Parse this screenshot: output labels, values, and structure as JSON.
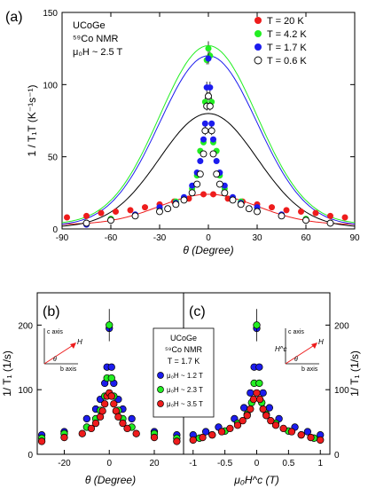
{
  "colors": {
    "red": "#ee1c1c",
    "green": "#22ee22",
    "blue": "#1c1cee",
    "black": "#000000",
    "open": "#ffffff"
  },
  "chart_data": [
    {
      "panel": "(a)",
      "type": "scatter",
      "sample": "UCoGe",
      "nucleus_label": "⁵⁹Co NMR",
      "field_label": "μ₀H ~ 2.5 T",
      "xlabel": "θ (Degree)",
      "ylabel": "1 / T₁T (K⁻¹s⁻¹)",
      "xlim": [
        -90,
        90
      ],
      "ylim": [
        0,
        150
      ],
      "xticks": [
        -90,
        -60,
        -30,
        0,
        30,
        60,
        90
      ],
      "yticks": [
        0,
        50,
        100,
        150
      ],
      "legend_position": "top-right",
      "legend": [
        "T = 20 K",
        "T = 4.2 K",
        "T = 1.7 K",
        "T = 0.6 K"
      ],
      "series": [
        {
          "name": "T = 20 K",
          "color": "red",
          "marker": "filled",
          "x": [
            -87,
            -75,
            -66,
            -57,
            -48,
            -39,
            -30,
            -21,
            -12,
            -3,
            3,
            12,
            21,
            30,
            39,
            48,
            57,
            66,
            75,
            84
          ],
          "y": [
            8,
            9,
            11,
            12,
            13,
            15,
            17,
            19,
            21,
            24,
            24,
            21,
            19,
            17,
            15,
            13,
            12,
            11,
            9,
            8
          ]
        },
        {
          "name": "T = 4.2 K",
          "color": "green",
          "marker": "filled",
          "x": [
            -60,
            -45,
            -30,
            -20,
            -15,
            -10,
            -7,
            -5,
            -3,
            -2,
            -1,
            0,
            1,
            2,
            3,
            5,
            7,
            10,
            15,
            20,
            30,
            45,
            60
          ],
          "y": [
            7,
            9,
            14,
            19,
            20,
            28,
            37,
            54,
            60,
            88,
            117,
            125,
            120,
            88,
            60,
            54,
            37,
            28,
            20,
            19,
            14,
            9,
            7
          ],
          "yerr": [
            0,
            0,
            0,
            0,
            0,
            0,
            0,
            0,
            0,
            3,
            3,
            5,
            3,
            3,
            0,
            0,
            0,
            0,
            0,
            0,
            0,
            0,
            0
          ]
        },
        {
          "name": "T = 1.7 K",
          "color": "blue",
          "marker": "filled",
          "x": [
            -75,
            -60,
            -45,
            -30,
            -20,
            -15,
            -10,
            -7,
            -5,
            -3,
            -2,
            -1,
            0,
            1,
            2,
            3,
            5,
            7,
            10,
            15,
            20,
            30,
            45,
            60
          ],
          "y": [
            3,
            6,
            10,
            15,
            18,
            22,
            30,
            39,
            47,
            62,
            73,
            98,
            118,
            98,
            73,
            62,
            47,
            39,
            30,
            22,
            18,
            15,
            10,
            6
          ],
          "yerr": [
            0,
            0,
            0,
            0,
            0,
            0,
            0,
            0,
            0,
            0,
            0,
            4,
            4,
            4,
            0,
            0,
            0,
            0,
            0,
            0,
            0,
            0,
            0,
            0
          ]
        },
        {
          "name": "T = 0.6 K",
          "color": "black",
          "marker": "open",
          "x": [
            -75,
            -60,
            -45,
            -30,
            -25,
            -20,
            -15,
            -10,
            -7,
            -5,
            -3,
            -2,
            -1,
            0,
            1,
            2,
            3,
            5,
            7,
            10,
            15,
            20,
            25,
            30,
            45,
            60,
            75
          ],
          "y": [
            4,
            6,
            9,
            12,
            14,
            17,
            20,
            25,
            31,
            38,
            52,
            68,
            85,
            92,
            85,
            68,
            52,
            38,
            31,
            25,
            20,
            17,
            14,
            12,
            9,
            6,
            4
          ],
          "yerr": [
            1,
            1,
            1,
            1,
            1,
            1,
            1,
            1,
            1,
            1,
            2,
            3,
            3,
            3,
            3,
            3,
            2,
            1,
            1,
            1,
            1,
            1,
            1,
            1,
            1,
            1,
            1
          ]
        }
      ],
      "fit_curves": [
        {
          "color": "red",
          "peak": 24,
          "base": 3
        },
        {
          "color": "green",
          "peak": 127,
          "base": 3
        },
        {
          "color": "blue",
          "peak": 120,
          "base": 2
        },
        {
          "color": "black",
          "peak": 80,
          "base": 1
        }
      ]
    },
    {
      "panel": "(b)",
      "type": "scatter",
      "xlabel": "θ (Degree)",
      "ylabel": "1/ T₁ (1/s)",
      "xlim": [
        -32,
        33
      ],
      "ylim": [
        0,
        250
      ],
      "xticks": [
        -20,
        0,
        20
      ],
      "yticks": [
        0,
        100,
        200
      ],
      "inset": {
        "y_axis": "c axis",
        "x_axis": "b axis",
        "vector": "H",
        "angle": "θ"
      },
      "series": [
        {
          "name": "μ₀H ~ 1.2 T",
          "color": "blue",
          "x": [
            -30,
            -20,
            -10,
            -6,
            -4,
            -2,
            -1,
            0,
            1,
            2,
            4,
            6,
            10,
            20,
            30
          ],
          "y": [
            30,
            35,
            55,
            70,
            85,
            110,
            135,
            195,
            135,
            110,
            85,
            70,
            55,
            35,
            30
          ]
        },
        {
          "name": "μ₀H ~ 2.3 T",
          "color": "green",
          "x": [
            -30,
            -20,
            -10,
            -6,
            -4,
            -2,
            -1,
            0,
            1,
            2,
            4,
            6,
            10,
            20,
            30
          ],
          "y": [
            25,
            32,
            42,
            55,
            68,
            90,
            118,
            200,
            118,
            90,
            68,
            55,
            42,
            32,
            25
          ],
          "yerr": [
            0,
            0,
            0,
            0,
            0,
            0,
            0,
            25,
            0,
            0,
            0,
            0,
            0,
            0,
            0
          ]
        },
        {
          "name": "μ₀H ~ 3.5 T",
          "color": "red",
          "x": [
            -30,
            -20,
            -12,
            -8,
            -6,
            -4,
            -3,
            -2,
            -1,
            0,
            1,
            2,
            3,
            4,
            6,
            8,
            12,
            20,
            30
          ],
          "y": [
            20,
            26,
            32,
            40,
            48,
            58,
            67,
            78,
            90,
            95,
            90,
            78,
            67,
            58,
            48,
            40,
            32,
            26,
            20
          ]
        }
      ]
    },
    {
      "panel": "(c)",
      "type": "scatter",
      "xlabel": "μ₀H^c (T)",
      "ylabel": "1/ T₁ (1/s)",
      "xlim": [
        -1.15,
        1.15
      ],
      "ylim": [
        0,
        250
      ],
      "xticks": [
        -1.0,
        -0.5,
        0.0,
        0.5,
        1.0
      ],
      "yticks": [
        0,
        100,
        200
      ],
      "inset": {
        "y_axis": "c axis",
        "x_axis": "b axis",
        "vector": "H",
        "component": "H^c",
        "angle": "θ"
      },
      "series": [
        {
          "name": "μ₀H ~ 1.2 T",
          "color": "blue",
          "x": [
            -1.0,
            -0.8,
            -0.6,
            -0.35,
            -0.2,
            -0.1,
            -0.04,
            0,
            0.04,
            0.1,
            0.2,
            0.35,
            0.6,
            0.8,
            1.0
          ],
          "y": [
            30,
            35,
            42,
            55,
            72,
            95,
            135,
            195,
            135,
            95,
            72,
            55,
            42,
            35,
            30
          ]
        },
        {
          "name": "μ₀H ~ 2.3 T",
          "color": "green",
          "x": [
            -0.9,
            -0.7,
            -0.5,
            -0.3,
            -0.15,
            -0.08,
            -0.04,
            0,
            0.04,
            0.08,
            0.15,
            0.3,
            0.5,
            0.7,
            0.9
          ],
          "y": [
            25,
            30,
            36,
            48,
            62,
            80,
            110,
            200,
            110,
            80,
            62,
            48,
            36,
            30,
            25
          ],
          "yerr": [
            0,
            0,
            0,
            0,
            0,
            0,
            0,
            25,
            0,
            0,
            0,
            0,
            0,
            0,
            0
          ]
        },
        {
          "name": "μ₀H ~ 3.5 T",
          "color": "red",
          "x": [
            -1.0,
            -0.85,
            -0.7,
            -0.55,
            -0.42,
            -0.3,
            -0.22,
            -0.15,
            -0.1,
            -0.05,
            0,
            0.05,
            0.1,
            0.15,
            0.22,
            0.3,
            0.42,
            0.55,
            0.7,
            0.85,
            1.0
          ],
          "y": [
            22,
            26,
            30,
            35,
            40,
            45,
            52,
            60,
            70,
            85,
            95,
            85,
            70,
            60,
            52,
            45,
            40,
            35,
            30,
            26,
            22
          ]
        }
      ]
    }
  ],
  "legend_bc": {
    "sample": "UCoGe",
    "nucleus_label": "⁵⁹Co NMR",
    "temperature_label": "T = 1.7 K",
    "entries": [
      "μ₀H ~ 1.2 T",
      "μ₀H ~ 2.3 T",
      "μ₀H ~ 3.5 T"
    ]
  }
}
